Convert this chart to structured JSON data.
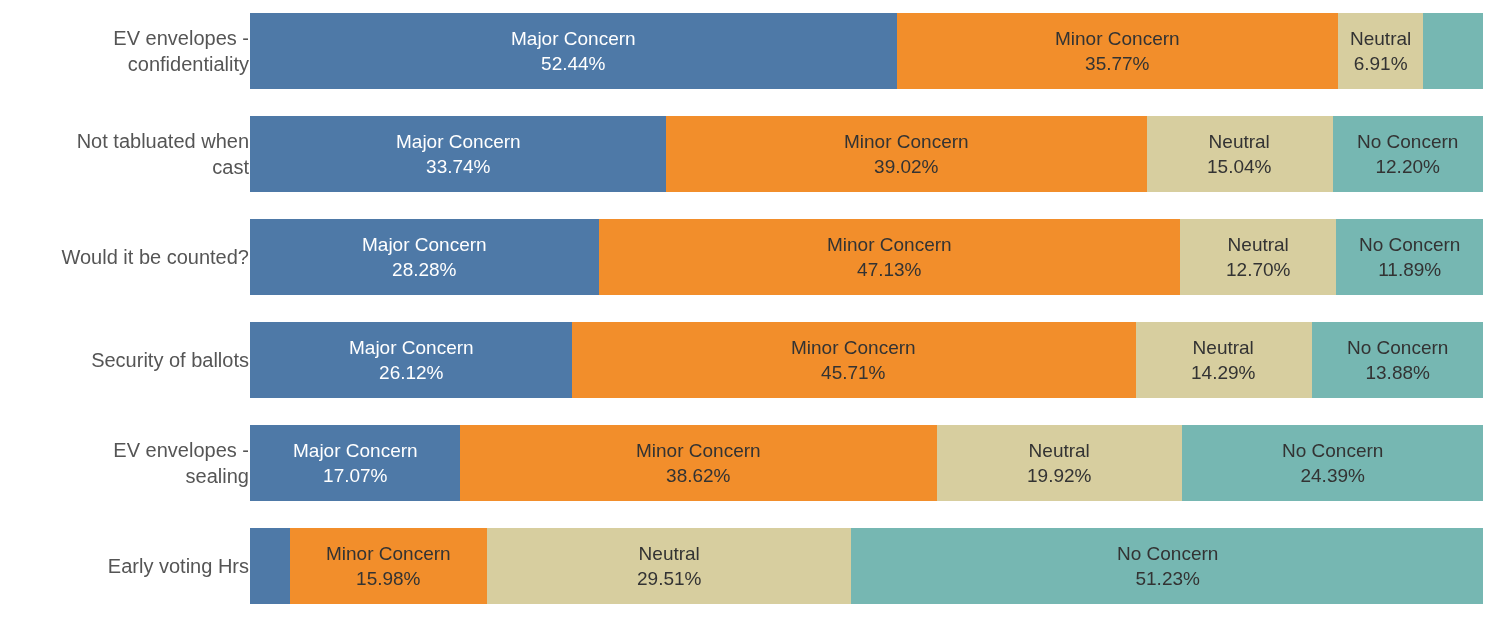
{
  "chart_data": {
    "type": "bar",
    "orientation": "horizontal",
    "stacked": true,
    "xlim": [
      0,
      100
    ],
    "tick_labels": "y",
    "categories": [
      "EV envelopes - confidentiality",
      "Not tabluated when cast",
      "Would it be counted?",
      "Security of ballots",
      "EV envelopes - sealing",
      "Early voting Hrs"
    ],
    "series": [
      {
        "name": "Major Concern",
        "color": "#4e79a7",
        "values": [
          52.44,
          33.74,
          28.28,
          26.12,
          17.07,
          3.28
        ],
        "value_labels": [
          "52.44%",
          "33.74%",
          "28.28%",
          "26.12%",
          "17.07%",
          null
        ]
      },
      {
        "name": "Minor Concern",
        "color": "#f28e2b",
        "values": [
          35.77,
          39.02,
          47.13,
          45.71,
          38.62,
          15.98
        ],
        "value_labels": [
          "35.77%",
          "39.02%",
          "47.13%",
          "45.71%",
          "38.62%",
          "15.98%"
        ]
      },
      {
        "name": "Neutral",
        "color": "#d7ce9f",
        "values": [
          6.91,
          15.04,
          12.7,
          14.29,
          19.92,
          29.51
        ],
        "value_labels": [
          "6.91%",
          "15.04%",
          "12.70%",
          "14.29%",
          "19.92%",
          "29.51%"
        ]
      },
      {
        "name": "No Concern",
        "color": "#76b7b2",
        "values": [
          4.88,
          12.2,
          11.89,
          13.88,
          24.39,
          51.23
        ],
        "value_labels": [
          null,
          "12.20%",
          "11.89%",
          "13.88%",
          "24.39%",
          "51.23%"
        ]
      }
    ]
  }
}
